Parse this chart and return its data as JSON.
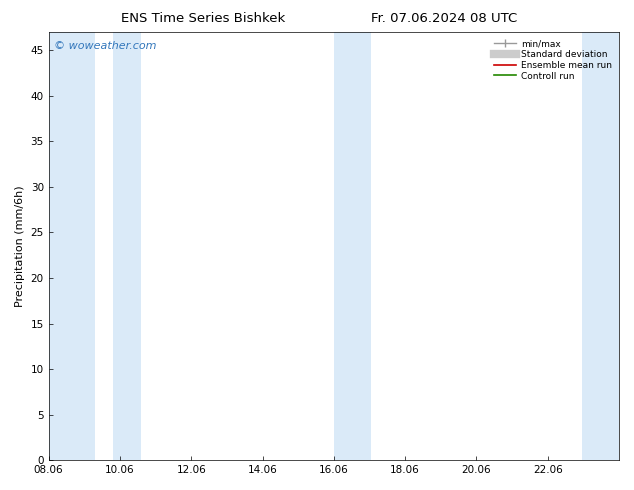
{
  "title_left": "ENS Time Series Bishkek",
  "title_right": "Fr. 07.06.2024 08 UTC",
  "watermark": "© woweather.com",
  "ylabel": "Precipitation (mm/6h)",
  "ylim": [
    0,
    47
  ],
  "yticks": [
    0,
    5,
    10,
    15,
    20,
    25,
    30,
    35,
    40,
    45
  ],
  "xtick_labels": [
    "08.06",
    "10.06",
    "12.06",
    "14.06",
    "16.06",
    "18.06",
    "20.06",
    "22.06"
  ],
  "xmin": 0,
  "xmax": 15.5,
  "shaded_bands": [
    [
      0.0,
      1.25
    ],
    [
      1.75,
      2.5
    ],
    [
      7.75,
      8.75
    ],
    [
      14.5,
      15.5
    ]
  ],
  "shade_color": "#daeaf8",
  "legend_labels": [
    "min/max",
    "Standard deviation",
    "Ensemble mean run",
    "Controll run"
  ],
  "bg_color": "#ffffff",
  "title_fontsize": 9.5,
  "tick_fontsize": 7.5,
  "ylabel_fontsize": 8,
  "watermark_color": "#3377bb",
  "watermark_fontsize": 8
}
